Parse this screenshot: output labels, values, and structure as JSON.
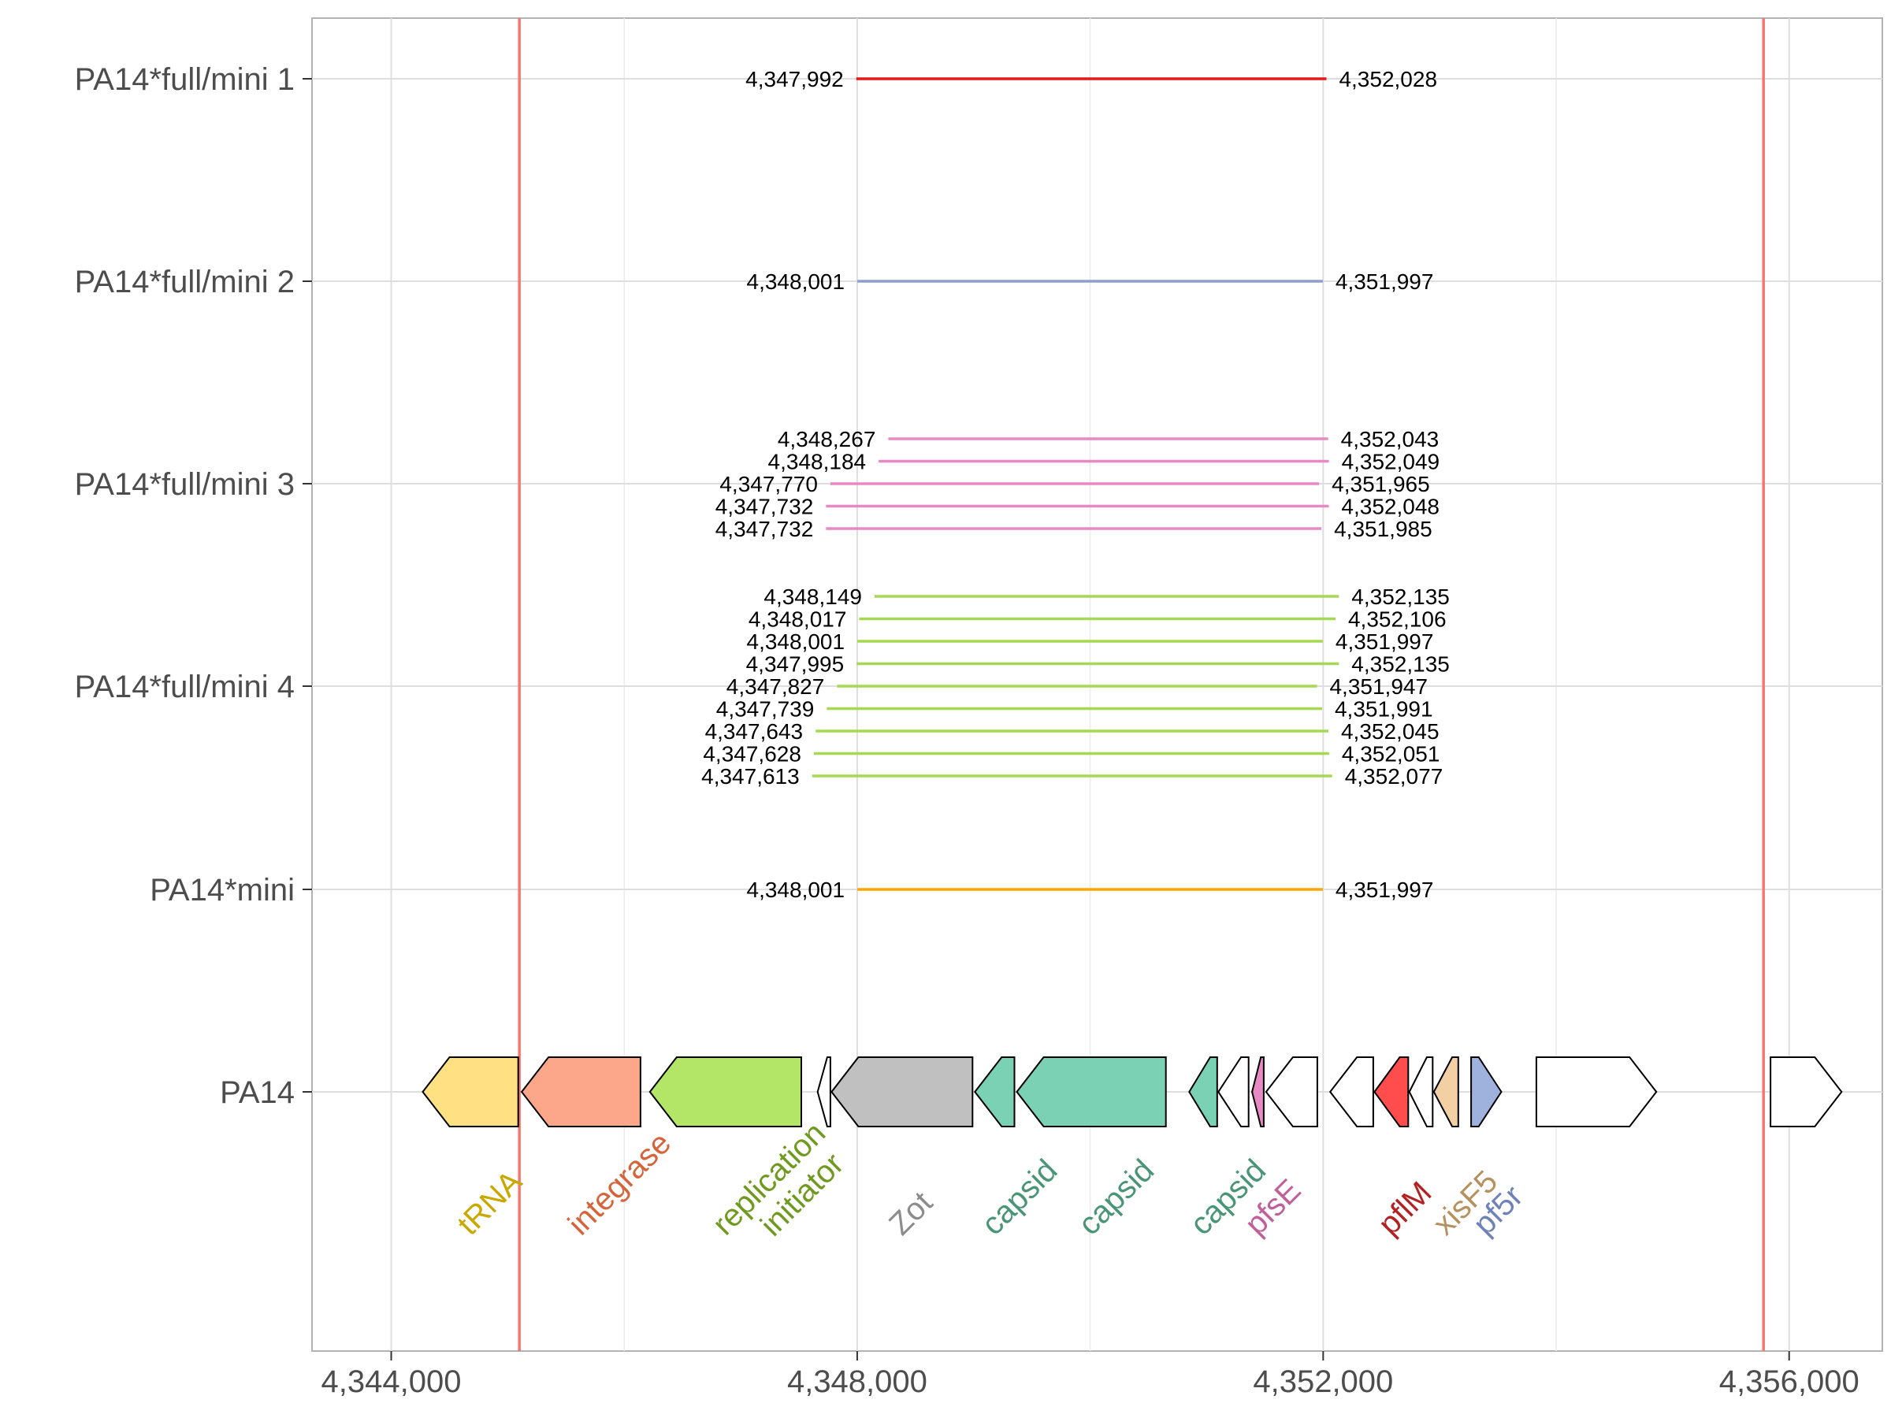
{
  "chart_data": {
    "type": "segment",
    "x_ticks": [
      {
        "value": 4344000,
        "label": "4,344,000"
      },
      {
        "value": 4348000,
        "label": "4,348,000"
      },
      {
        "value": 4352000,
        "label": "4,352,000"
      },
      {
        "value": 4356000,
        "label": "4,356,000"
      }
    ],
    "xlim": [
      4343320,
      4356800
    ],
    "vlines": [
      {
        "x": 4345100,
        "color": "#f8766d"
      },
      {
        "x": 4355780,
        "color": "#f8766d"
      }
    ],
    "categories": [
      "PA14*full/mini 1",
      "PA14*full/mini 2",
      "PA14*full/mini 3",
      "PA14*full/mini 4",
      "PA14*mini",
      "PA14"
    ],
    "series": [
      {
        "category": "PA14*full/mini 1",
        "color": "#e31a1c",
        "segments": [
          {
            "start": 4347992,
            "end": 4352028,
            "start_label": "4,347,992",
            "end_label": "4,352,028"
          }
        ]
      },
      {
        "category": "PA14*full/mini 2",
        "color": "#8da0cb",
        "segments": [
          {
            "start": 4348001,
            "end": 4351997,
            "start_label": "4,348,001",
            "end_label": "4,351,997"
          }
        ]
      },
      {
        "category": "PA14*full/mini 3",
        "color": "#e78ac3",
        "segments": [
          {
            "start": 4348267,
            "end": 4352043,
            "start_label": "4,348,267",
            "end_label": "4,352,043"
          },
          {
            "start": 4348184,
            "end": 4352049,
            "start_label": "4,348,184",
            "end_label": "4,352,049"
          },
          {
            "start": 4347770,
            "end": 4351965,
            "start_label": "4,347,770",
            "end_label": "4,351,965"
          },
          {
            "start": 4347732,
            "end": 4352048,
            "start_label": "4,347,732",
            "end_label": "4,352,048"
          },
          {
            "start": 4347732,
            "end": 4351985,
            "start_label": "4,347,732",
            "end_label": "4,351,985"
          }
        ]
      },
      {
        "category": "PA14*full/mini 4",
        "color": "#a6d854",
        "segments": [
          {
            "start": 4348149,
            "end": 4352135,
            "start_label": "4,348,149",
            "end_label": "4,352,135"
          },
          {
            "start": 4348017,
            "end": 4352106,
            "start_label": "4,348,017",
            "end_label": "4,352,106"
          },
          {
            "start": 4348001,
            "end": 4351997,
            "start_label": "4,348,001",
            "end_label": "4,351,997"
          },
          {
            "start": 4347995,
            "end": 4352135,
            "start_label": "4,347,995",
            "end_label": "4,352,135"
          },
          {
            "start": 4347827,
            "end": 4351947,
            "start_label": "4,347,827",
            "end_label": "4,351,947"
          },
          {
            "start": 4347739,
            "end": 4351991,
            "start_label": "4,347,739",
            "end_label": "4,351,991"
          },
          {
            "start": 4347643,
            "end": 4352045,
            "start_label": "4,347,643",
            "end_label": "4,352,045"
          },
          {
            "start": 4347628,
            "end": 4352051,
            "start_label": "4,347,628",
            "end_label": "4,352,051"
          },
          {
            "start": 4347613,
            "end": 4352077,
            "start_label": "4,347,613",
            "end_label": "4,352,077"
          }
        ]
      },
      {
        "category": "PA14*mini",
        "color": "#ffa500",
        "segments": [
          {
            "start": 4348001,
            "end": 4351997,
            "start_label": "4,348,001",
            "end_label": "4,351,997"
          }
        ]
      }
    ],
    "genes": [
      {
        "start": 4344270,
        "end": 4345090,
        "strand": "-",
        "fill": "#ffe082",
        "name": "tRNA",
        "label_color": "#c9a800"
      },
      {
        "start": 4345120,
        "end": 4346140,
        "strand": "-",
        "fill": "#fca78a",
        "name": "integrase",
        "label_color": "#d5643a"
      },
      {
        "start": 4346220,
        "end": 4347520,
        "strand": "-",
        "fill": "#b3e566",
        "name": "replication initiator",
        "label_color": "#6f9a1f"
      },
      {
        "start": 4347660,
        "end": 4347770,
        "strand": "-",
        "fill": "#ffffff",
        "name": ""
      },
      {
        "start": 4347780,
        "end": 4348990,
        "strand": "-",
        "fill": "#c0c0c0",
        "name": "Zot",
        "label_color": "#8c8c8c"
      },
      {
        "start": 4349010,
        "end": 4349350,
        "strand": "-",
        "fill": "#7ad1b4",
        "name": "capsid",
        "label_color": "#4a9478"
      },
      {
        "start": 4349370,
        "end": 4350650,
        "strand": "-",
        "fill": "#7ad1b4",
        "name": "capsid",
        "label_color": "#4a9478"
      },
      {
        "start": 4350850,
        "end": 4351090,
        "strand": "-",
        "fill": "#7ad1b4",
        "name": "capsid",
        "label_color": "#4a9478"
      },
      {
        "start": 4351100,
        "end": 4351360,
        "strand": "-",
        "fill": "#ffffff",
        "name": ""
      },
      {
        "start": 4351390,
        "end": 4351490,
        "strand": "-",
        "fill": "#e78ac3",
        "name": "pfsE",
        "label_color": "#c0609a"
      },
      {
        "start": 4351510,
        "end": 4351950,
        "strand": "-",
        "fill": "#ffffff",
        "name": ""
      },
      {
        "start": 4352060,
        "end": 4352430,
        "strand": "-",
        "fill": "#ffffff",
        "name": ""
      },
      {
        "start": 4352440,
        "end": 4352730,
        "strand": "-",
        "fill": "#ff4d4d",
        "name": "pflM",
        "label_color": "#b22222"
      },
      {
        "start": 4352740,
        "end": 4352940,
        "strand": "-",
        "fill": "#ffffff",
        "name": ""
      },
      {
        "start": 4352950,
        "end": 4353160,
        "strand": "-",
        "fill": "#f2d0a4",
        "name": "xisF5",
        "label_color": "#b5915e"
      },
      {
        "start": 4353270,
        "end": 4353530,
        "strand": "+",
        "fill": "#9fb1dd",
        "name": "pf5r",
        "label_color": "#6f82b8"
      },
      {
        "start": 4353830,
        "end": 4354860,
        "strand": "+",
        "fill": "#ffffff",
        "name": ""
      },
      {
        "start": 4355840,
        "end": 4356450,
        "strand": "+",
        "fill": "#ffffff",
        "name": ""
      }
    ]
  }
}
